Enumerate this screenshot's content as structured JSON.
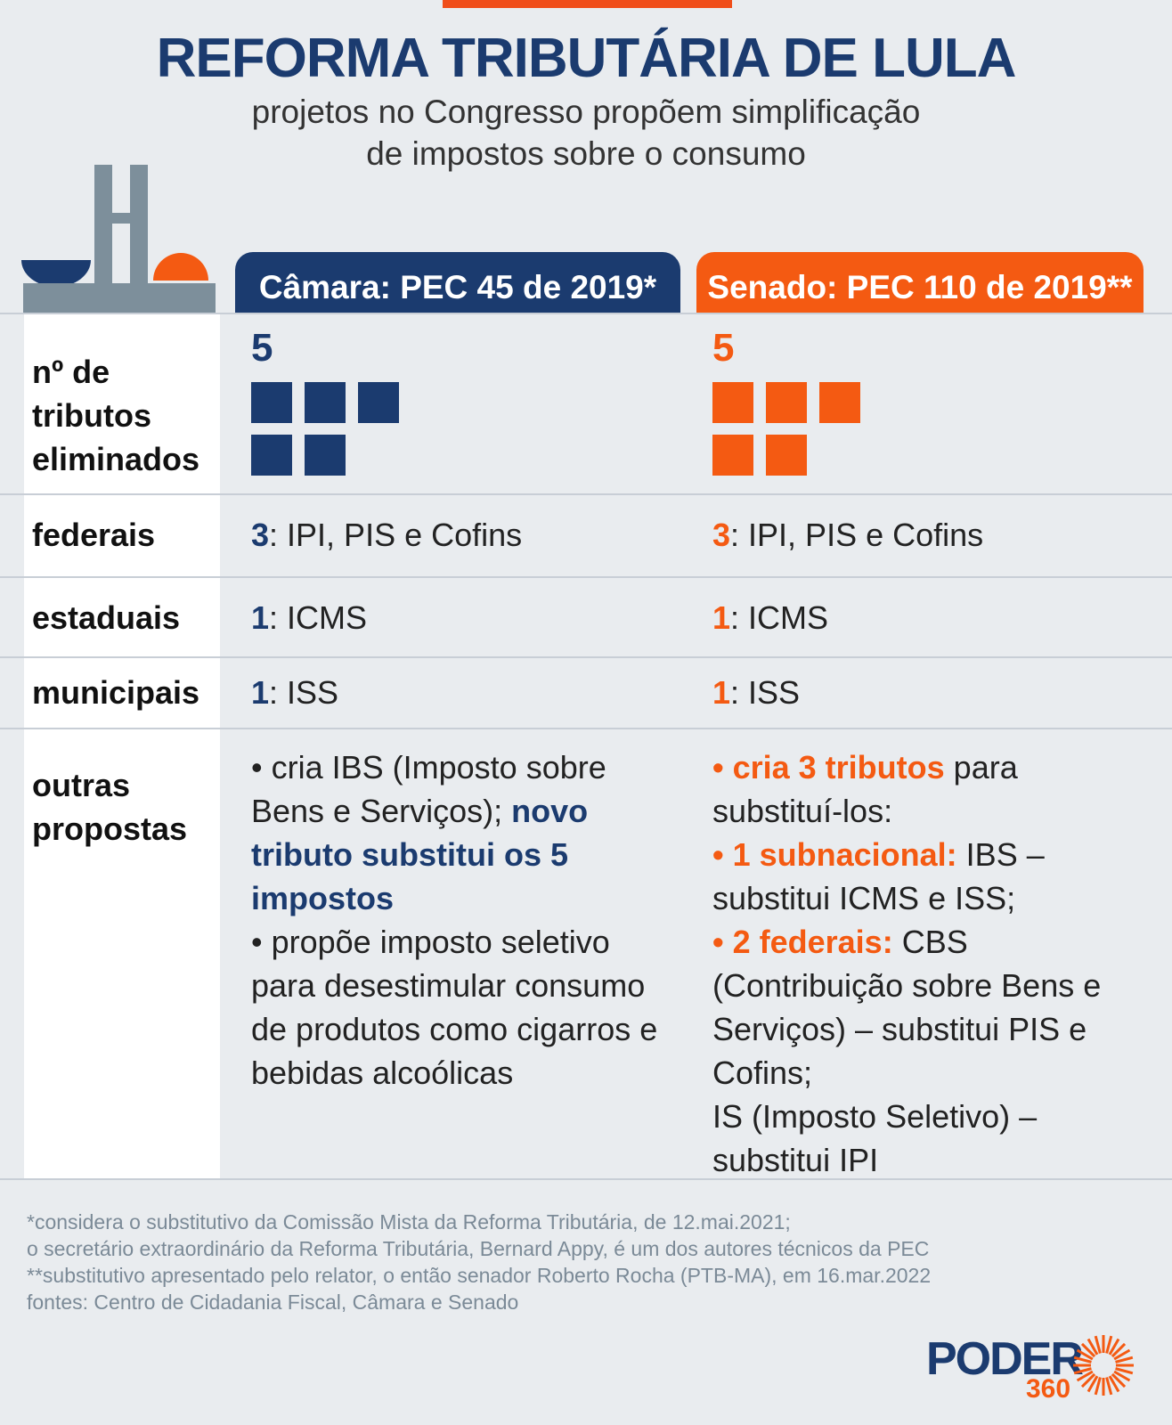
{
  "title": "REFORMA TRIBUTÁRIA DE LULA",
  "subtitle_line1": "projetos no Congresso propõem simplificação",
  "subtitle_line2": "de impostos sobre o consumo",
  "colors": {
    "camara": "#1b3b6f",
    "senado": "#f45a12",
    "building": "#7d8f9b"
  },
  "headers": {
    "camara": "Câmara: PEC 45 de 2019*",
    "senado": "Senado: PEC 110 de 2019**"
  },
  "rows": {
    "eliminados": {
      "label_lines": [
        "nº de",
        "tributos",
        "eliminados"
      ],
      "camara_count": "5",
      "senado_count": "5",
      "squares": 5
    },
    "federais": {
      "label": "federais",
      "camara_num": "3",
      "camara_text": ": IPI, PIS e Cofins",
      "senado_num": "3",
      "senado_text": ": IPI, PIS e Cofins"
    },
    "estaduais": {
      "label": "estaduais",
      "camara_num": "1",
      "camara_text": ": ICMS",
      "senado_num": "1",
      "senado_text": ": ICMS"
    },
    "municipais": {
      "label": "municipais",
      "camara_num": "1",
      "camara_text": ": ISS",
      "senado_num": "1",
      "senado_text": ": ISS"
    },
    "outras": {
      "label_lines": [
        "outras",
        "propostas"
      ],
      "camara": {
        "p1": "• cria IBS (Imposto sobre Bens e Serviços); ",
        "p1_bold": "novo tributo substitui os 5 impostos",
        "p2": "• propõe imposto seletivo para desestimular consumo de produtos como cigarros e bebidas alcoólicas"
      },
      "senado": {
        "b1_bold": "• cria 3 tributos",
        "b1": " para substituí-los:",
        "b2_bold": "• 1 subnacional:",
        "b2": " IBS – substitui ICMS e ISS;",
        "b3_bold": "• 2 federais:",
        "b3": " CBS (Contribuição sobre Bens e Serviços) – substitui PIS e Cofins;",
        "b4": "IS (Imposto Seletivo) – substitui IPI"
      }
    }
  },
  "footnotes": [
    "*considera o substitutivo da Comissão Mista da Reforma Tributária, de 12.mai.2021;",
    "o secretário extraordinário da Reforma Tributária, Bernard Appy, é um dos autores técnicos da PEC",
    "**substitutivo apresentado pelo relator, o então senador Roberto Rocha (PTB-MA), em 16.mar.2022",
    "fontes: Centro de Cidadania Fiscal, Câmara e Senado"
  ],
  "logo": {
    "word": "PODER",
    "number": "360"
  }
}
